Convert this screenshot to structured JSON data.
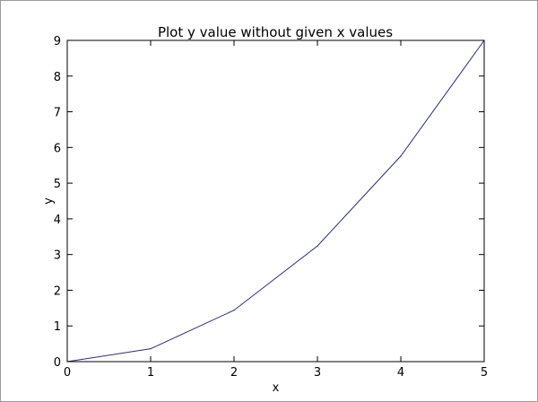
{
  "chart_data": {
    "type": "line",
    "title": "Plot y value without given x values",
    "xlabel": "x",
    "ylabel": "y",
    "xlim": [
      0,
      5
    ],
    "ylim": [
      0,
      9
    ],
    "grid": false,
    "legend": "none",
    "x_ticks": [
      0,
      1,
      2,
      3,
      4,
      5
    ],
    "y_ticks": [
      0,
      1,
      2,
      3,
      4,
      5,
      6,
      7,
      8,
      9
    ],
    "series": [
      {
        "color": "#2b2b7a",
        "x": [
          0,
          1,
          2,
          3,
          4,
          5
        ],
        "y": [
          0,
          0.36,
          1.44,
          3.24,
          5.76,
          9
        ]
      }
    ]
  }
}
